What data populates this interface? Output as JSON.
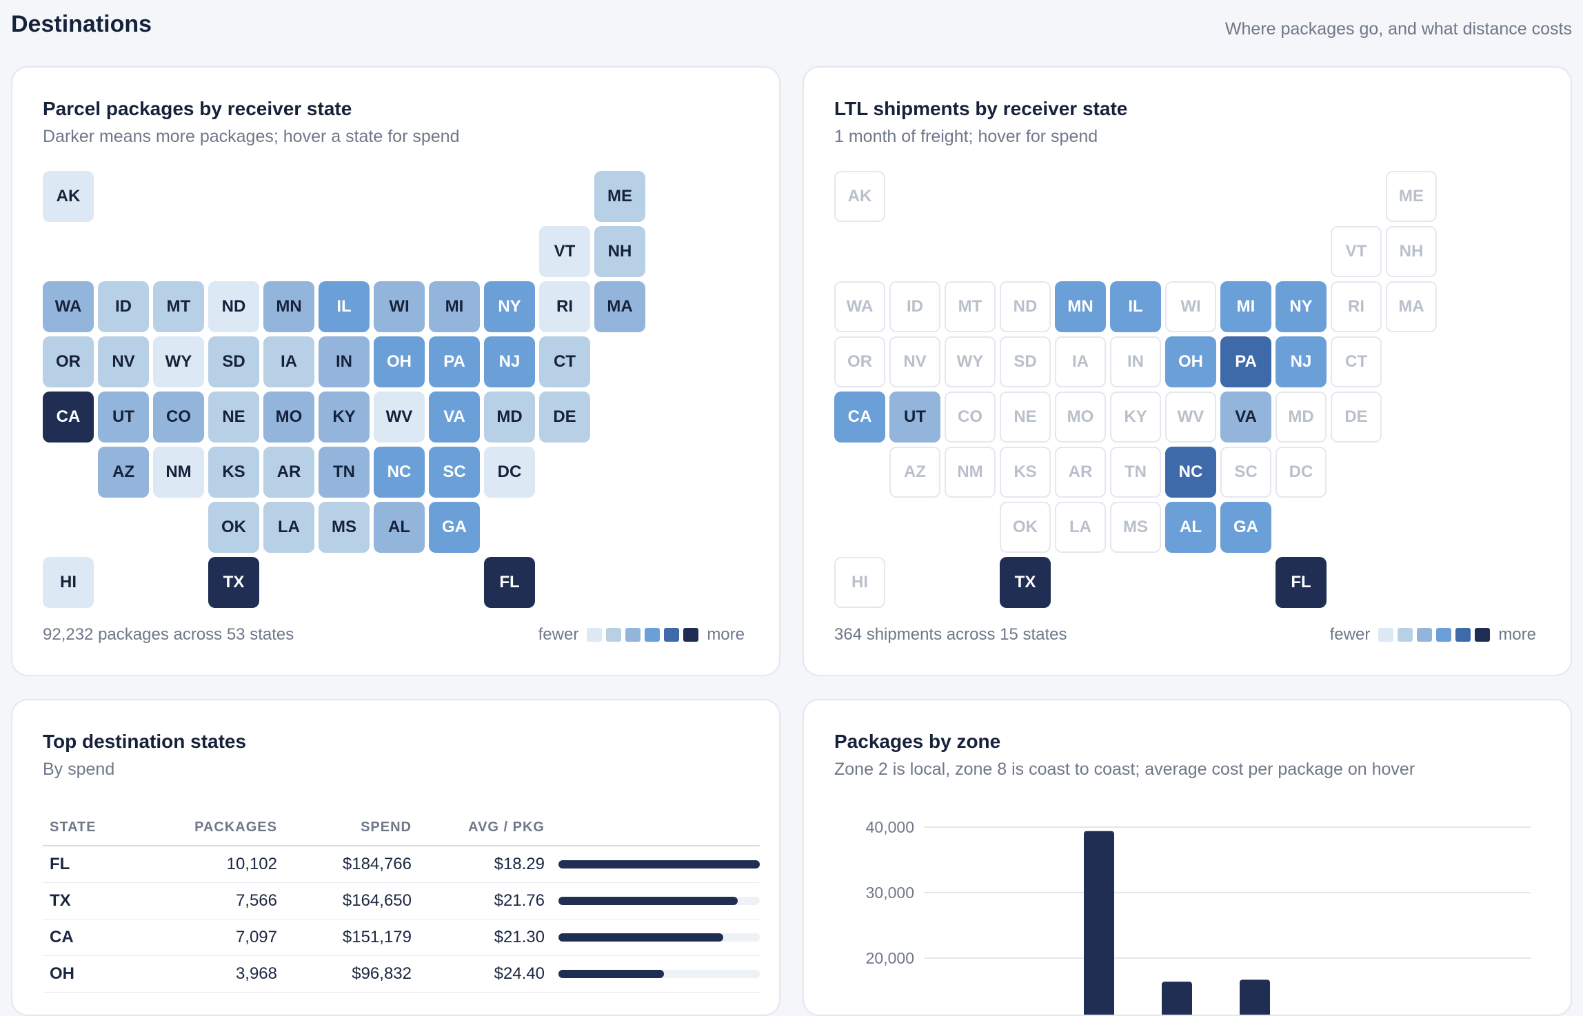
{
  "header": {
    "title": "Destinations",
    "subtitle": "Where packages go, and what distance costs"
  },
  "palette": [
    "#dce8f4",
    "#b8d0e6",
    "#93b5dc",
    "#6b9fd8",
    "#3f6aaa",
    "#1f2e52"
  ],
  "parcel_map": {
    "title": "Parcel packages by receiver state",
    "subtitle": "Darker means more packages; hover a state for spend",
    "footer": "92,232 packages across 53 states",
    "legend_fewer": "fewer",
    "legend_more": "more",
    "tiles": [
      {
        "state": "AK",
        "level": 1
      },
      {
        "state": "ME",
        "level": 2
      },
      {
        "state": "VT",
        "level": 1
      },
      {
        "state": "NH",
        "level": 2
      },
      {
        "state": "WA",
        "level": 3
      },
      {
        "state": "ID",
        "level": 2
      },
      {
        "state": "MT",
        "level": 2
      },
      {
        "state": "ND",
        "level": 1
      },
      {
        "state": "MN",
        "level": 3
      },
      {
        "state": "IL",
        "level": 4
      },
      {
        "state": "WI",
        "level": 3
      },
      {
        "state": "MI",
        "level": 3
      },
      {
        "state": "NY",
        "level": 4
      },
      {
        "state": "RI",
        "level": 1
      },
      {
        "state": "MA",
        "level": 3
      },
      {
        "state": "OR",
        "level": 2
      },
      {
        "state": "NV",
        "level": 2
      },
      {
        "state": "WY",
        "level": 1
      },
      {
        "state": "SD",
        "level": 2
      },
      {
        "state": "IA",
        "level": 2
      },
      {
        "state": "IN",
        "level": 3
      },
      {
        "state": "OH",
        "level": 4
      },
      {
        "state": "PA",
        "level": 4
      },
      {
        "state": "NJ",
        "level": 4
      },
      {
        "state": "CT",
        "level": 2
      },
      {
        "state": "CA",
        "level": 6
      },
      {
        "state": "UT",
        "level": 3
      },
      {
        "state": "CO",
        "level": 3
      },
      {
        "state": "NE",
        "level": 2
      },
      {
        "state": "MO",
        "level": 3
      },
      {
        "state": "KY",
        "level": 3
      },
      {
        "state": "WV",
        "level": 1
      },
      {
        "state": "VA",
        "level": 4
      },
      {
        "state": "MD",
        "level": 2
      },
      {
        "state": "DE",
        "level": 2
      },
      {
        "state": "AZ",
        "level": 3
      },
      {
        "state": "NM",
        "level": 1
      },
      {
        "state": "KS",
        "level": 2
      },
      {
        "state": "AR",
        "level": 2
      },
      {
        "state": "TN",
        "level": 3
      },
      {
        "state": "NC",
        "level": 4
      },
      {
        "state": "SC",
        "level": 4
      },
      {
        "state": "DC",
        "level": 1
      },
      {
        "state": "OK",
        "level": 2
      },
      {
        "state": "LA",
        "level": 2
      },
      {
        "state": "MS",
        "level": 2
      },
      {
        "state": "AL",
        "level": 3
      },
      {
        "state": "GA",
        "level": 4
      },
      {
        "state": "HI",
        "level": 1
      },
      {
        "state": "TX",
        "level": 6
      },
      {
        "state": "FL",
        "level": 6
      }
    ]
  },
  "ltl_map": {
    "title": "LTL shipments by receiver state",
    "subtitle": "1 month of freight; hover for spend",
    "footer": "364 shipments across 15 states",
    "legend_fewer": "fewer",
    "legend_more": "more",
    "tiles": [
      {
        "state": "AK",
        "level": 0
      },
      {
        "state": "ME",
        "level": 0
      },
      {
        "state": "VT",
        "level": 0
      },
      {
        "state": "NH",
        "level": 0
      },
      {
        "state": "WA",
        "level": 0
      },
      {
        "state": "ID",
        "level": 0
      },
      {
        "state": "MT",
        "level": 0
      },
      {
        "state": "ND",
        "level": 0
      },
      {
        "state": "MN",
        "level": 4
      },
      {
        "state": "IL",
        "level": 4
      },
      {
        "state": "WI",
        "level": 0
      },
      {
        "state": "MI",
        "level": 4
      },
      {
        "state": "NY",
        "level": 4
      },
      {
        "state": "RI",
        "level": 0
      },
      {
        "state": "MA",
        "level": 0
      },
      {
        "state": "OR",
        "level": 0
      },
      {
        "state": "NV",
        "level": 0
      },
      {
        "state": "WY",
        "level": 0
      },
      {
        "state": "SD",
        "level": 0
      },
      {
        "state": "IA",
        "level": 0
      },
      {
        "state": "IN",
        "level": 0
      },
      {
        "state": "OH",
        "level": 4
      },
      {
        "state": "PA",
        "level": 5
      },
      {
        "state": "NJ",
        "level": 4
      },
      {
        "state": "CT",
        "level": 0
      },
      {
        "state": "CA",
        "level": 4
      },
      {
        "state": "UT",
        "level": 3
      },
      {
        "state": "CO",
        "level": 0
      },
      {
        "state": "NE",
        "level": 0
      },
      {
        "state": "MO",
        "level": 0
      },
      {
        "state": "KY",
        "level": 0
      },
      {
        "state": "WV",
        "level": 0
      },
      {
        "state": "VA",
        "level": 3
      },
      {
        "state": "MD",
        "level": 0
      },
      {
        "state": "DE",
        "level": 0
      },
      {
        "state": "AZ",
        "level": 0
      },
      {
        "state": "NM",
        "level": 0
      },
      {
        "state": "KS",
        "level": 0
      },
      {
        "state": "AR",
        "level": 0
      },
      {
        "state": "TN",
        "level": 0
      },
      {
        "state": "NC",
        "level": 5
      },
      {
        "state": "SC",
        "level": 0
      },
      {
        "state": "DC",
        "level": 0
      },
      {
        "state": "OK",
        "level": 0
      },
      {
        "state": "LA",
        "level": 0
      },
      {
        "state": "MS",
        "level": 0
      },
      {
        "state": "AL",
        "level": 4
      },
      {
        "state": "GA",
        "level": 4
      },
      {
        "state": "HI",
        "level": 0
      },
      {
        "state": "TX",
        "level": 6
      },
      {
        "state": "FL",
        "level": 6
      }
    ]
  },
  "top_states": {
    "title": "Top destination states",
    "subtitle": "By spend",
    "columns": [
      "STATE",
      "PACKAGES",
      "SPEND",
      "AVG / PKG"
    ],
    "rows": [
      {
        "state": "FL",
        "packages": "10,102",
        "spend": "$184,766",
        "avg": "$18.29",
        "share": 1.0
      },
      {
        "state": "TX",
        "packages": "7,566",
        "spend": "$164,650",
        "avg": "$21.76",
        "share": 0.891
      },
      {
        "state": "CA",
        "packages": "7,097",
        "spend": "$151,179",
        "avg": "$21.30",
        "share": 0.818
      },
      {
        "state": "OH",
        "packages": "3,968",
        "spend": "$96,832",
        "avg": "$24.40",
        "share": 0.524
      }
    ]
  },
  "zone_chart": {
    "title": "Packages by zone",
    "subtitle": "Zone 2 is local, zone 8 is coast to coast; average cost per package on hover",
    "chart_data": {
      "type": "bar",
      "title": "Packages by zone",
      "ylim": [
        0,
        40000
      ],
      "yticks": [
        {
          "value": 40000,
          "label": "40,000"
        },
        {
          "value": 30000,
          "label": "30,000"
        },
        {
          "value": 20000,
          "label": "20,000"
        }
      ],
      "grid": true,
      "bars": [
        {
          "value": 39400
        },
        {
          "value": 16400
        },
        {
          "value": 16700
        }
      ]
    }
  }
}
